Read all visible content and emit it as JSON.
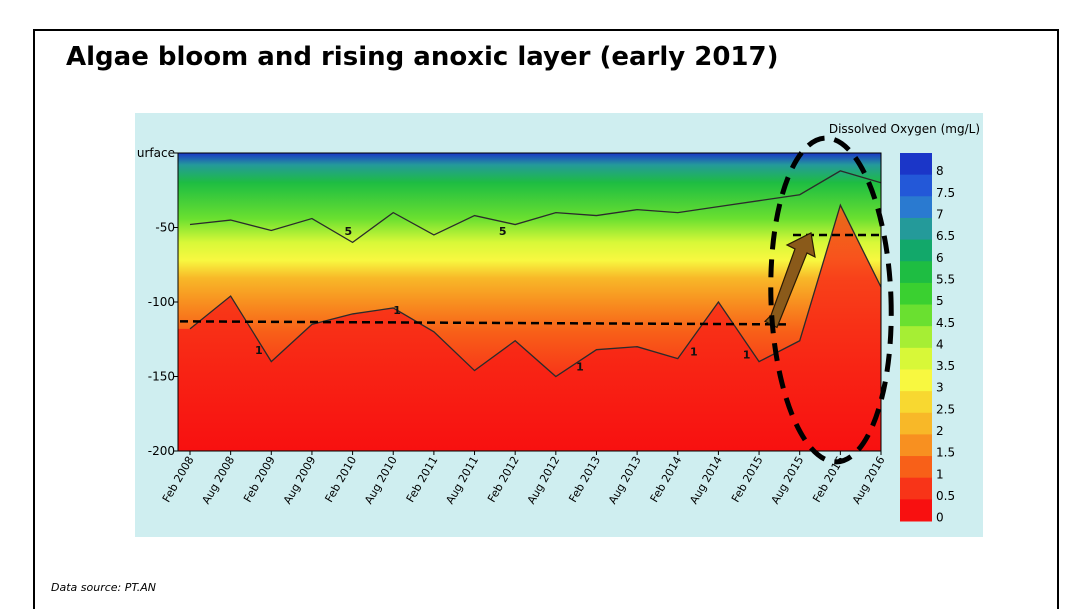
{
  "slide": {
    "title": "Algae bloom and rising anoxic layer (early 2017)",
    "source_note": "Data source: PT.AN"
  },
  "chart_data": {
    "type": "heatmap",
    "title": "",
    "colorbar_title": "Dissolved Oxygen (mg/L)",
    "x_tick_labels": [
      "Feb 2008",
      "Aug 2008",
      "Feb 2009",
      "Aug 2009",
      "Feb 2010",
      "Aug 2010",
      "Feb 2011",
      "Aug 2011",
      "Feb 2012",
      "Aug 2012",
      "Feb 2013",
      "Aug 2013",
      "Feb 2014",
      "Aug 2014",
      "Feb 2015",
      "Aug 2015",
      "Feb 2016",
      "Aug 2016"
    ],
    "y_tick_labels": [
      "urface",
      "-50",
      "-100",
      "-150",
      "-200"
    ],
    "ylim": [
      -200,
      0
    ],
    "color_levels": [
      8,
      7.5,
      7,
      6.5,
      6,
      5.5,
      5,
      4.5,
      4,
      3.5,
      3,
      2.5,
      2,
      1.5,
      1,
      0.5,
      0
    ],
    "color_scale": [
      "#1b36c8",
      "#2358d8",
      "#2a7ad0",
      "#249a9a",
      "#12a86a",
      "#1ebd42",
      "#3ad030",
      "#6ae030",
      "#a6ee34",
      "#d8f838",
      "#f8f840",
      "#f8d830",
      "#f8b828",
      "#f89020",
      "#f86018",
      "#f83418",
      "#f81010"
    ],
    "contour_labels": [
      "5",
      "5",
      "1",
      "1",
      "1",
      "1",
      "1",
      "1"
    ],
    "series": [
      {
        "name": "",
        "x": [
          "Feb 2008",
          "Aug 2008",
          "Feb 2009",
          "Aug 2009",
          "Feb 2010",
          "Aug 2010",
          "Feb 2011",
          "Aug 2011",
          "Feb 2012",
          "Aug 2012",
          "Feb 2013",
          "Aug 2013",
          "Feb 2014",
          "Aug 2014",
          "Feb 2015",
          "Aug 2015",
          "Feb 2016",
          "Aug 2016"
        ],
        "values": [
          -48,
          -45,
          -52,
          -44,
          -60,
          -40,
          -55,
          -42,
          -48,
          -40,
          -42,
          -38,
          -40,
          -36,
          -32,
          -28,
          -12,
          -20
        ]
      },
      {
        "name": "",
        "x": [
          "Feb 2008",
          "Aug 2008",
          "Feb 2009",
          "Aug 2009",
          "Feb 2010",
          "Aug 2010",
          "Feb 2011",
          "Aug 2011",
          "Feb 2012",
          "Aug 2012",
          "Feb 2013",
          "Aug 2013",
          "Feb 2014",
          "Aug 2014",
          "Feb 2015",
          "Aug 2015",
          "Feb 2016",
          "Aug 2016"
        ],
        "values": [
          -118,
          -96,
          -140,
          -115,
          -108,
          -104,
          -120,
          -146,
          -126,
          -150,
          -132,
          -130,
          -138,
          -100,
          -140,
          -126,
          -35,
          -90
        ]
      }
    ],
    "annotations": {
      "old_anoxic_layer_depth": -113,
      "new_anoxic_layer_depth": -55,
      "highlight": "ellipse around Aug 2015 – Aug 2016",
      "arrow": "upward from old to new anoxic level"
    }
  }
}
